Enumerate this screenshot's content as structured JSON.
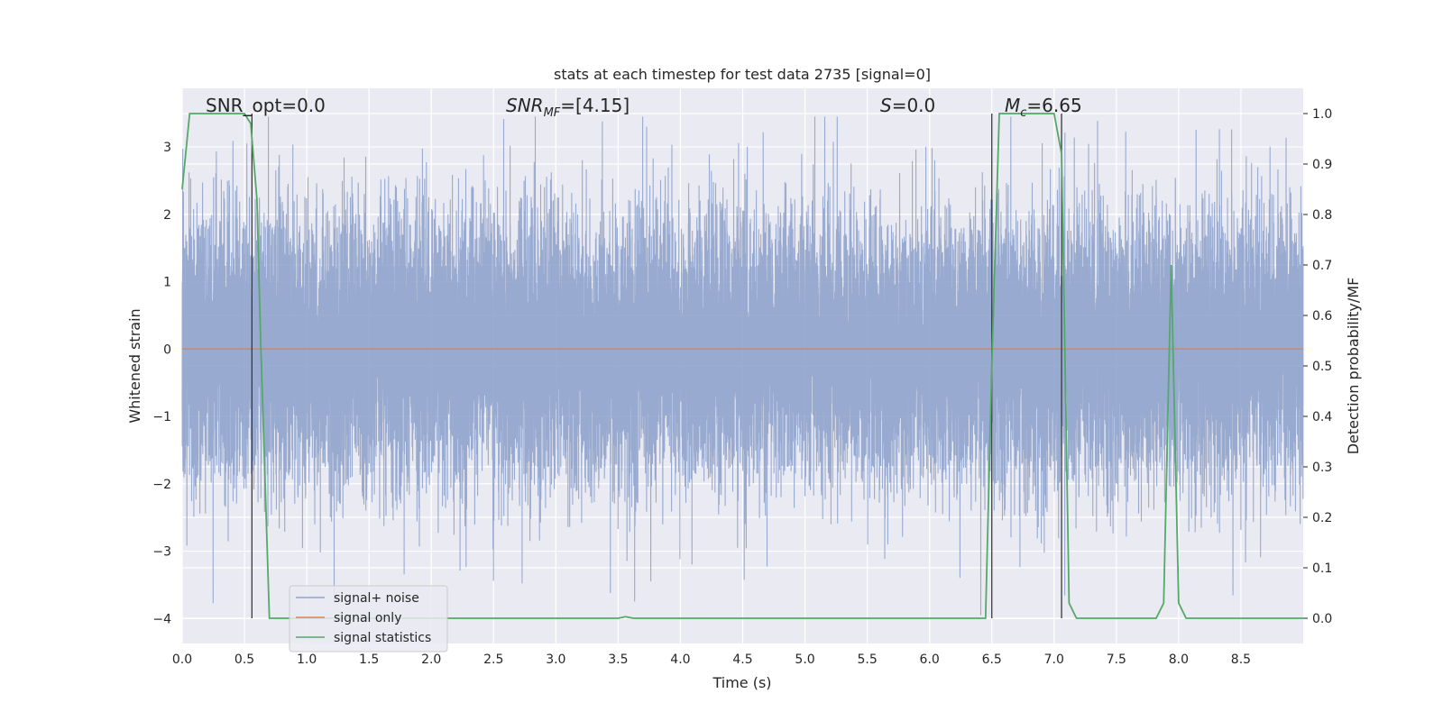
{
  "chart_data": {
    "type": "line",
    "title": "stats at each timestep for test data 2735 [signal=0]",
    "xlabel": "Time (s)",
    "ylabel_left": "Whitened strain",
    "ylabel_right": "Detection probability/MF",
    "xlim": [
      0.0,
      9.0
    ],
    "ylim_left": [
      -4.37,
      3.87
    ],
    "ylim_right": [
      -0.05,
      1.05
    ],
    "x_ticks": [
      0.0,
      0.5,
      1.0,
      1.5,
      2.0,
      2.5,
      3.0,
      3.5,
      4.0,
      4.5,
      5.0,
      5.5,
      6.0,
      6.5,
      7.0,
      7.5,
      8.0,
      8.5
    ],
    "x_tick_labels": [
      "0.0",
      "0.5",
      "1.0",
      "1.5",
      "2.0",
      "2.5",
      "3.0",
      "3.5",
      "4.0",
      "4.5",
      "5.0",
      "5.5",
      "6.0",
      "6.5",
      "7.0",
      "7.5",
      "8.0",
      "8.5"
    ],
    "y_left_ticks": [
      3,
      2,
      1,
      0,
      -1,
      -2,
      -3,
      -4
    ],
    "y_left_tick_labels": [
      "3",
      "2",
      "1",
      "0",
      "−1",
      "−2",
      "−3",
      "−4"
    ],
    "y_right_ticks": [
      1.0,
      0.9,
      0.8,
      0.7,
      0.6,
      0.5,
      0.4,
      0.3,
      0.2,
      0.1,
      0.0
    ],
    "y_right_tick_labels": [
      "1.0",
      "0.9",
      "0.8",
      "0.7",
      "0.6",
      "0.5",
      "0.4",
      "0.3",
      "0.2",
      "0.1",
      "0.0"
    ],
    "noise": {
      "name": "signal+ noise",
      "color": "#8fa3cc",
      "duration_s": 9.0,
      "sample_rate_hz": 2048,
      "std": 1.0
    },
    "series": [
      {
        "name": "signal only",
        "color": "#dd8452",
        "axis": "left",
        "x": [
          0.0,
          9.0
        ],
        "y": [
          0.0,
          0.0
        ]
      },
      {
        "name": "signal statistics",
        "color": "#55a868",
        "axis": "right",
        "x": [
          0.0,
          0.06,
          0.1,
          0.5,
          0.55,
          0.6,
          0.63,
          0.7,
          3.5,
          3.56,
          3.62,
          6.45,
          6.5,
          6.56,
          7.0,
          7.06,
          7.12,
          7.18,
          7.82,
          7.88,
          7.94,
          8.0,
          8.06,
          9.0
        ],
        "y": [
          0.85,
          1.0,
          1.0,
          1.0,
          0.98,
          0.83,
          0.55,
          0.0,
          0.0,
          0.003,
          0.0,
          0.0,
          0.5,
          1.0,
          1.0,
          0.92,
          0.03,
          0.0,
          0.0,
          0.03,
          0.7,
          0.03,
          0.0,
          0.0
        ]
      }
    ],
    "vlines": [
      0.56,
      6.5,
      7.06
    ],
    "vline_color": "#3a3a3a",
    "annotations": [
      {
        "text": "SNR_opt=0.0",
        "x": 0.19
      },
      {
        "text": "=[4.15]",
        "x": 2.6,
        "math": "SNR_MF"
      },
      {
        "text": "=0.0",
        "x": 5.6,
        "math": "S"
      },
      {
        "text": "=6.65",
        "x": 6.6,
        "math": "M_c"
      }
    ],
    "legend": {
      "position": "lower-left",
      "entries": [
        "signal+ noise",
        "signal only",
        "signal statistics"
      ]
    }
  }
}
